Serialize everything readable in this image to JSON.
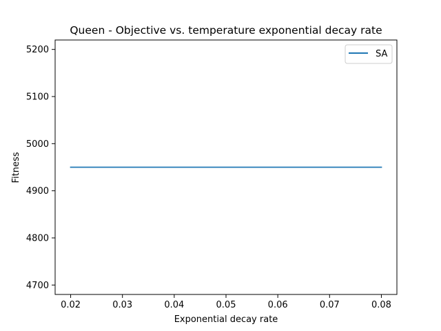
{
  "chart_data": {
    "type": "line",
    "title": "Queen - Objective vs. temperature exponential decay rate",
    "xlabel": "Exponential decay rate",
    "ylabel": "Fitness",
    "x": [
      0.02,
      0.08
    ],
    "series": [
      {
        "name": "SA",
        "color": "#1f77b4",
        "values": [
          4950,
          4950
        ]
      }
    ],
    "xlim": [
      0.017,
      0.083
    ],
    "ylim": [
      4680,
      5220
    ],
    "xticks": [
      0.02,
      0.03,
      0.04,
      0.05,
      0.06,
      0.07,
      0.08
    ],
    "xtick_labels": [
      "0.02",
      "0.03",
      "0.04",
      "0.05",
      "0.06",
      "0.07",
      "0.08"
    ],
    "yticks": [
      4700,
      4800,
      4900,
      5000,
      5100,
      5200
    ],
    "ytick_labels": [
      "4700",
      "4800",
      "4900",
      "5000",
      "5100",
      "5200"
    ],
    "grid": false,
    "legend_position": "top-right"
  }
}
